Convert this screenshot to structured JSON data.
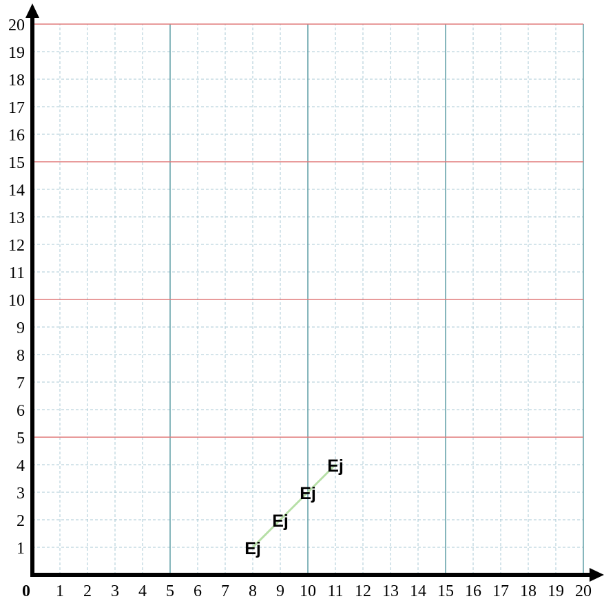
{
  "chart_data": {
    "type": "line",
    "title": "",
    "xlabel": "",
    "ylabel": "",
    "xlim": [
      0,
      20
    ],
    "ylim": [
      0,
      20
    ],
    "origin_label": "0",
    "x_ticks": [
      1,
      2,
      3,
      4,
      5,
      6,
      7,
      8,
      9,
      10,
      11,
      12,
      13,
      14,
      15,
      16,
      17,
      18,
      19,
      20
    ],
    "y_ticks": [
      1,
      2,
      3,
      4,
      5,
      6,
      7,
      8,
      9,
      10,
      11,
      12,
      13,
      14,
      15,
      16,
      17,
      18,
      19,
      20
    ],
    "grid": {
      "minor_step": 1,
      "major_step": 5,
      "minor_color": "#a9c9d4",
      "major_vertical_color": "#5f9ea6",
      "major_horizontal_color": "#e07a7a"
    },
    "series": [
      {
        "color": "#b6dfa6",
        "point_label": "Ej",
        "points": [
          {
            "x": 8,
            "y": 1
          },
          {
            "x": 9,
            "y": 2
          },
          {
            "x": 10,
            "y": 3
          },
          {
            "x": 11,
            "y": 4
          }
        ]
      }
    ]
  }
}
